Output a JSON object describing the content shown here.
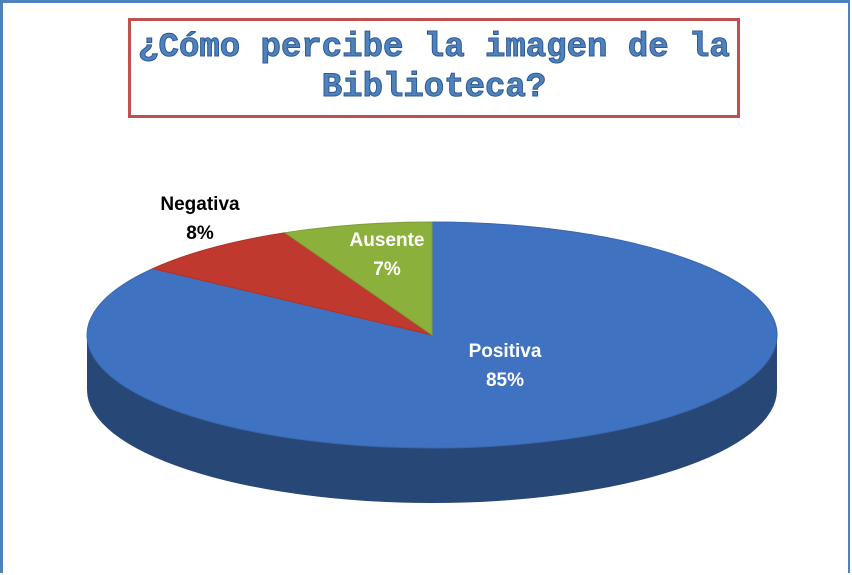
{
  "chart_data": {
    "type": "pie",
    "title": "¿Cómo percibe la imagen de la Biblioteca?",
    "categories": [
      "Positiva",
      "Negativa",
      "Ausente"
    ],
    "values": [
      85,
      8,
      7
    ],
    "value_labels": [
      "85%",
      "8%",
      "7%"
    ],
    "colors": [
      "#3f72c0",
      "#c0392e",
      "#8cb03c"
    ]
  }
}
